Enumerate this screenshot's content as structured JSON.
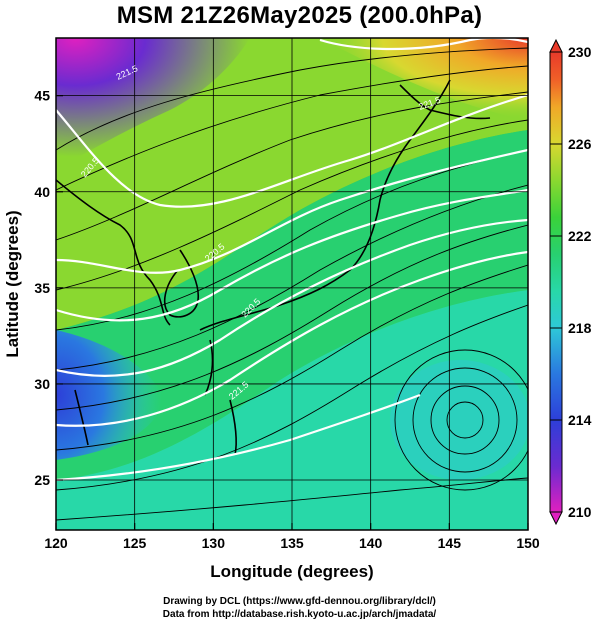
{
  "title": "MSM 21Z26May2025 (200.0hPa)",
  "map": {
    "lon_range": [
      120,
      150
    ],
    "lat_range": [
      22.4,
      48
    ],
    "x_ticks": [
      120,
      125,
      130,
      135,
      140,
      145,
      150
    ],
    "x_tick_labels": [
      "120",
      "125",
      "130",
      "135",
      "140",
      "145",
      "150"
    ],
    "y_ticks": [
      25,
      30,
      35,
      40,
      45
    ],
    "y_tick_labels": [
      "25",
      "30",
      "35",
      "40",
      "45"
    ],
    "xlabel": "Longitude (degrees)",
    "ylabel": "Latitude  (degrees)",
    "grid": true,
    "grid_color": "#000000",
    "field": "temperature (color shading), wind streamlines, white contours"
  },
  "colorbar": {
    "min": 210,
    "max": 230,
    "tick_labels": [
      "230",
      "226",
      "222",
      "218",
      "214",
      "210"
    ],
    "colors": [
      "#e020c0",
      "#6a2bd0",
      "#2d3fd8",
      "#2a78e0",
      "#2ec8d8",
      "#28d8a8",
      "#28d070",
      "#3ad23a",
      "#8ad830",
      "#d8d830",
      "#f0a828",
      "#f06028",
      "#e83a2a"
    ]
  },
  "contour_labels": [
    "221.5",
    "220.5",
    "220.5",
    "221.5",
    "220.5",
    "221.5"
  ],
  "credits": {
    "line1": "Drawing by DCL (https://www.gfd-dennou.org/library/dcl/)",
    "line2": "Data from http://database.rish.kyoto-u.ac.jp/arch/jmadata/"
  }
}
